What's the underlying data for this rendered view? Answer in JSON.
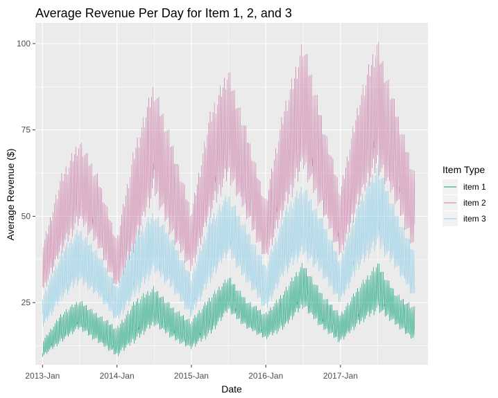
{
  "chart_data": {
    "type": "line",
    "title": "Average Revenue Per Day for Item 1, 2, and 3",
    "xlabel": "Date",
    "ylabel": "Average Revenue ($)",
    "x_range": [
      "2012-11-27",
      "2018-03-06"
    ],
    "ylim": [
      7,
      106
    ],
    "x_ticks": [
      {
        "date": "2013-01-01",
        "label": "2013-Jan"
      },
      {
        "date": "2014-01-01",
        "label": "2014-Jan"
      },
      {
        "date": "2015-01-01",
        "label": "2015-Jan"
      },
      {
        "date": "2016-01-01",
        "label": "2016-Jan"
      },
      {
        "date": "2017-01-01",
        "label": "2017-Jan"
      }
    ],
    "y_ticks": [
      25,
      50,
      75,
      100
    ],
    "grid": true,
    "legend": {
      "title": "Item Type",
      "position": "right"
    },
    "series": [
      {
        "name": "item 1",
        "color": "#009E73",
        "points": [
          {
            "x": "2013-01-01",
            "low": 9,
            "high": 14
          },
          {
            "x": "2013-04-01",
            "low": 13,
            "high": 22
          },
          {
            "x": "2013-07-01",
            "low": 17,
            "high": 26
          },
          {
            "x": "2013-10-01",
            "low": 13,
            "high": 22
          },
          {
            "x": "2013-12-31",
            "low": 9,
            "high": 18
          },
          {
            "x": "2014-04-01",
            "low": 13,
            "high": 26
          },
          {
            "x": "2014-07-01",
            "low": 18,
            "high": 30
          },
          {
            "x": "2014-10-01",
            "low": 14,
            "high": 24
          },
          {
            "x": "2014-12-31",
            "low": 11,
            "high": 20
          },
          {
            "x": "2015-04-01",
            "low": 15,
            "high": 27
          },
          {
            "x": "2015-07-01",
            "low": 22,
            "high": 33
          },
          {
            "x": "2015-10-01",
            "low": 17,
            "high": 26
          },
          {
            "x": "2015-12-31",
            "low": 14,
            "high": 22
          },
          {
            "x": "2016-04-01",
            "low": 17,
            "high": 29
          },
          {
            "x": "2016-07-01",
            "low": 23,
            "high": 37
          },
          {
            "x": "2016-10-01",
            "low": 17,
            "high": 28
          },
          {
            "x": "2016-12-31",
            "low": 13,
            "high": 22
          },
          {
            "x": "2017-04-01",
            "low": 18,
            "high": 30
          },
          {
            "x": "2017-07-01",
            "low": 22,
            "high": 37
          },
          {
            "x": "2017-10-01",
            "low": 18,
            "high": 28
          },
          {
            "x": "2017-12-31",
            "low": 13,
            "high": 24
          }
        ]
      },
      {
        "name": "item 2",
        "color": "#CC79A7",
        "points": [
          {
            "x": "2013-01-01",
            "low": 27,
            "high": 42
          },
          {
            "x": "2013-04-01",
            "low": 38,
            "high": 62
          },
          {
            "x": "2013-07-01",
            "low": 47,
            "high": 73
          },
          {
            "x": "2013-10-01",
            "low": 40,
            "high": 62
          },
          {
            "x": "2013-12-31",
            "low": 28,
            "high": 44
          },
          {
            "x": "2014-04-01",
            "low": 40,
            "high": 72
          },
          {
            "x": "2014-07-01",
            "low": 55,
            "high": 89
          },
          {
            "x": "2014-10-01",
            "low": 42,
            "high": 72
          },
          {
            "x": "2014-12-31",
            "low": 33,
            "high": 52
          },
          {
            "x": "2015-04-01",
            "low": 48,
            "high": 80
          },
          {
            "x": "2015-07-01",
            "low": 60,
            "high": 94
          },
          {
            "x": "2015-10-01",
            "low": 48,
            "high": 75
          },
          {
            "x": "2015-12-31",
            "low": 36,
            "high": 55
          },
          {
            "x": "2016-04-01",
            "low": 50,
            "high": 83
          },
          {
            "x": "2016-07-01",
            "low": 62,
            "high": 102
          },
          {
            "x": "2016-10-01",
            "low": 50,
            "high": 80
          },
          {
            "x": "2016-12-31",
            "low": 37,
            "high": 58
          },
          {
            "x": "2017-04-01",
            "low": 52,
            "high": 85
          },
          {
            "x": "2017-07-01",
            "low": 62,
            "high": 102
          },
          {
            "x": "2017-10-01",
            "low": 52,
            "high": 82
          },
          {
            "x": "2017-12-31",
            "low": 38,
            "high": 63
          }
        ]
      },
      {
        "name": "item 3",
        "color": "#88CDEA",
        "points": [
          {
            "x": "2013-01-01",
            "low": 17,
            "high": 27
          },
          {
            "x": "2013-04-01",
            "low": 25,
            "high": 40
          },
          {
            "x": "2013-07-01",
            "low": 30,
            "high": 47
          },
          {
            "x": "2013-10-01",
            "low": 26,
            "high": 40
          },
          {
            "x": "2013-12-31",
            "low": 19,
            "high": 30
          },
          {
            "x": "2014-04-01",
            "low": 26,
            "high": 45
          },
          {
            "x": "2014-07-01",
            "low": 33,
            "high": 52
          },
          {
            "x": "2014-10-01",
            "low": 28,
            "high": 44
          },
          {
            "x": "2014-12-31",
            "low": 20,
            "high": 33
          },
          {
            "x": "2015-04-01",
            "low": 30,
            "high": 50
          },
          {
            "x": "2015-07-01",
            "low": 38,
            "high": 57
          },
          {
            "x": "2015-10-01",
            "low": 30,
            "high": 47
          },
          {
            "x": "2015-12-31",
            "low": 22,
            "high": 36
          },
          {
            "x": "2016-04-01",
            "low": 32,
            "high": 52
          },
          {
            "x": "2016-07-01",
            "low": 38,
            "high": 60
          },
          {
            "x": "2016-10-01",
            "low": 32,
            "high": 50
          },
          {
            "x": "2016-12-31",
            "low": 24,
            "high": 38
          },
          {
            "x": "2017-04-01",
            "low": 34,
            "high": 55
          },
          {
            "x": "2017-07-01",
            "low": 40,
            "high": 66
          },
          {
            "x": "2017-10-01",
            "low": 34,
            "high": 52
          },
          {
            "x": "2017-12-31",
            "low": 25,
            "high": 40
          }
        ]
      }
    ]
  }
}
